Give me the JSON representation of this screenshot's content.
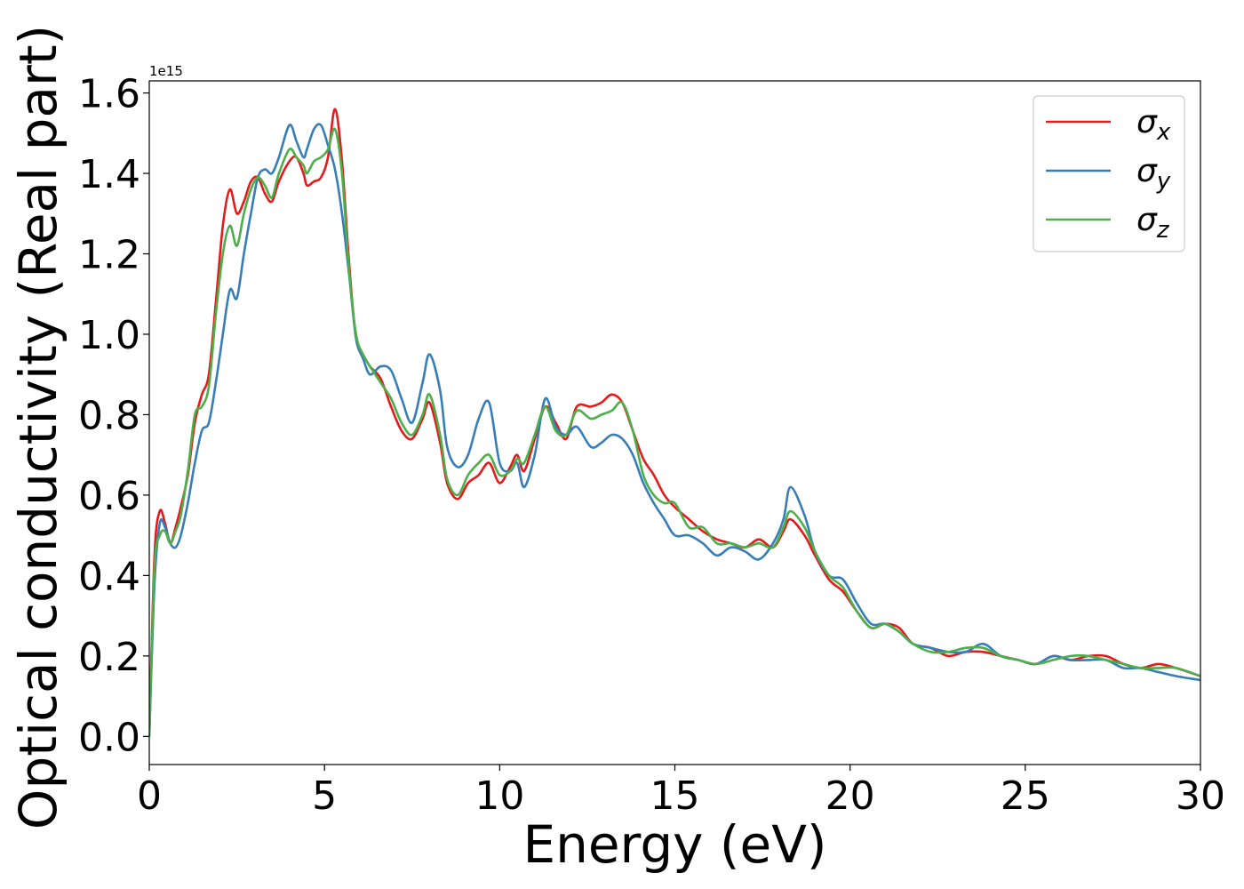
{
  "chart_data": {
    "type": "line",
    "title": "",
    "xlabel": "Energy (eV)",
    "ylabel": "Optical conductivity (Real part)",
    "y_offset_label": "1e15",
    "xlim": [
      0,
      30
    ],
    "ylim": [
      -0.07,
      1.63
    ],
    "x_ticks": [
      0,
      5,
      10,
      15,
      20,
      25,
      30
    ],
    "x_tick_labels": [
      "0",
      "5",
      "10",
      "15",
      "20",
      "25",
      "30"
    ],
    "y_ticks": [
      0.0,
      0.2,
      0.4,
      0.6,
      0.8,
      1.0,
      1.2,
      1.4,
      1.6
    ],
    "y_tick_labels": [
      "0.0",
      "0.2",
      "0.4",
      "0.6",
      "0.8",
      "1.0",
      "1.2",
      "1.4",
      "1.6"
    ],
    "grid": false,
    "legend_position": "top-right",
    "series": [
      {
        "name": "σx",
        "label_base": "σ",
        "label_sub": "x",
        "color": "#e41a1c",
        "points": [
          [
            0,
            0.0
          ],
          [
            0.15,
            0.45
          ],
          [
            0.3,
            0.56
          ],
          [
            0.45,
            0.53
          ],
          [
            0.6,
            0.48
          ],
          [
            0.75,
            0.52
          ],
          [
            0.9,
            0.57
          ],
          [
            1.1,
            0.65
          ],
          [
            1.3,
            0.78
          ],
          [
            1.5,
            0.85
          ],
          [
            1.7,
            0.9
          ],
          [
            1.9,
            1.08
          ],
          [
            2.1,
            1.27
          ],
          [
            2.3,
            1.36
          ],
          [
            2.5,
            1.3
          ],
          [
            2.7,
            1.33
          ],
          [
            2.9,
            1.38
          ],
          [
            3.1,
            1.39
          ],
          [
            3.3,
            1.35
          ],
          [
            3.5,
            1.33
          ],
          [
            3.7,
            1.38
          ],
          [
            4.0,
            1.43
          ],
          [
            4.2,
            1.44
          ],
          [
            4.4,
            1.4
          ],
          [
            4.5,
            1.37
          ],
          [
            4.7,
            1.38
          ],
          [
            4.9,
            1.39
          ],
          [
            5.1,
            1.44
          ],
          [
            5.3,
            1.56
          ],
          [
            5.5,
            1.43
          ],
          [
            5.7,
            1.18
          ],
          [
            5.9,
            0.99
          ],
          [
            6.1,
            0.95
          ],
          [
            6.3,
            0.92
          ],
          [
            6.6,
            0.89
          ],
          [
            6.9,
            0.82
          ],
          [
            7.2,
            0.76
          ],
          [
            7.5,
            0.74
          ],
          [
            7.8,
            0.79
          ],
          [
            8.0,
            0.83
          ],
          [
            8.3,
            0.73
          ],
          [
            8.5,
            0.63
          ],
          [
            8.8,
            0.59
          ],
          [
            9.1,
            0.63
          ],
          [
            9.4,
            0.65
          ],
          [
            9.7,
            0.68
          ],
          [
            10.0,
            0.63
          ],
          [
            10.3,
            0.67
          ],
          [
            10.5,
            0.7
          ],
          [
            10.7,
            0.66
          ],
          [
            11.0,
            0.74
          ],
          [
            11.3,
            0.82
          ],
          [
            11.6,
            0.78
          ],
          [
            11.9,
            0.74
          ],
          [
            12.2,
            0.82
          ],
          [
            12.6,
            0.82
          ],
          [
            12.9,
            0.83
          ],
          [
            13.2,
            0.85
          ],
          [
            13.5,
            0.83
          ],
          [
            13.8,
            0.76
          ],
          [
            14.1,
            0.69
          ],
          [
            14.4,
            0.65
          ],
          [
            14.7,
            0.6
          ],
          [
            15.0,
            0.57
          ],
          [
            15.4,
            0.54
          ],
          [
            15.8,
            0.51
          ],
          [
            16.2,
            0.49
          ],
          [
            16.6,
            0.48
          ],
          [
            17.0,
            0.47
          ],
          [
            17.4,
            0.49
          ],
          [
            17.8,
            0.47
          ],
          [
            18.1,
            0.51
          ],
          [
            18.3,
            0.54
          ],
          [
            18.7,
            0.5
          ],
          [
            19.0,
            0.45
          ],
          [
            19.4,
            0.39
          ],
          [
            19.8,
            0.36
          ],
          [
            20.2,
            0.31
          ],
          [
            20.6,
            0.27
          ],
          [
            21.0,
            0.28
          ],
          [
            21.4,
            0.27
          ],
          [
            21.8,
            0.23
          ],
          [
            22.3,
            0.22
          ],
          [
            22.8,
            0.2
          ],
          [
            23.3,
            0.21
          ],
          [
            23.8,
            0.21
          ],
          [
            24.3,
            0.2
          ],
          [
            24.8,
            0.19
          ],
          [
            25.3,
            0.18
          ],
          [
            25.8,
            0.2
          ],
          [
            26.3,
            0.19
          ],
          [
            26.8,
            0.2
          ],
          [
            27.3,
            0.2
          ],
          [
            27.8,
            0.18
          ],
          [
            28.3,
            0.17
          ],
          [
            28.8,
            0.18
          ],
          [
            29.3,
            0.17
          ],
          [
            30.0,
            0.15
          ]
        ]
      },
      {
        "name": "σy",
        "label_base": "σ",
        "label_sub": "y",
        "color": "#377eb8",
        "points": [
          [
            0,
            0.0
          ],
          [
            0.15,
            0.38
          ],
          [
            0.3,
            0.53
          ],
          [
            0.45,
            0.52
          ],
          [
            0.6,
            0.48
          ],
          [
            0.75,
            0.47
          ],
          [
            0.9,
            0.5
          ],
          [
            1.1,
            0.58
          ],
          [
            1.3,
            0.68
          ],
          [
            1.5,
            0.76
          ],
          [
            1.7,
            0.78
          ],
          [
            1.9,
            0.88
          ],
          [
            2.1,
            1.0
          ],
          [
            2.3,
            1.11
          ],
          [
            2.5,
            1.09
          ],
          [
            2.7,
            1.2
          ],
          [
            2.9,
            1.3
          ],
          [
            3.1,
            1.39
          ],
          [
            3.3,
            1.41
          ],
          [
            3.5,
            1.4
          ],
          [
            3.7,
            1.44
          ],
          [
            4.0,
            1.52
          ],
          [
            4.2,
            1.48
          ],
          [
            4.4,
            1.44
          ],
          [
            4.5,
            1.46
          ],
          [
            4.7,
            1.51
          ],
          [
            4.9,
            1.52
          ],
          [
            5.1,
            1.47
          ],
          [
            5.3,
            1.41
          ],
          [
            5.5,
            1.3
          ],
          [
            5.7,
            1.15
          ],
          [
            5.9,
            0.99
          ],
          [
            6.1,
            0.94
          ],
          [
            6.3,
            0.9
          ],
          [
            6.6,
            0.92
          ],
          [
            6.9,
            0.91
          ],
          [
            7.2,
            0.84
          ],
          [
            7.5,
            0.78
          ],
          [
            7.8,
            0.88
          ],
          [
            8.0,
            0.95
          ],
          [
            8.3,
            0.86
          ],
          [
            8.5,
            0.72
          ],
          [
            8.8,
            0.67
          ],
          [
            9.1,
            0.7
          ],
          [
            9.4,
            0.79
          ],
          [
            9.7,
            0.83
          ],
          [
            10.0,
            0.68
          ],
          [
            10.3,
            0.66
          ],
          [
            10.5,
            0.68
          ],
          [
            10.7,
            0.62
          ],
          [
            11.0,
            0.7
          ],
          [
            11.3,
            0.84
          ],
          [
            11.6,
            0.77
          ],
          [
            11.9,
            0.75
          ],
          [
            12.2,
            0.77
          ],
          [
            12.6,
            0.72
          ],
          [
            12.9,
            0.73
          ],
          [
            13.2,
            0.75
          ],
          [
            13.5,
            0.74
          ],
          [
            13.8,
            0.7
          ],
          [
            14.1,
            0.63
          ],
          [
            14.4,
            0.58
          ],
          [
            14.7,
            0.54
          ],
          [
            15.0,
            0.5
          ],
          [
            15.4,
            0.5
          ],
          [
            15.8,
            0.48
          ],
          [
            16.2,
            0.45
          ],
          [
            16.6,
            0.47
          ],
          [
            17.0,
            0.46
          ],
          [
            17.4,
            0.44
          ],
          [
            17.8,
            0.48
          ],
          [
            18.1,
            0.54
          ],
          [
            18.3,
            0.62
          ],
          [
            18.7,
            0.55
          ],
          [
            19.0,
            0.46
          ],
          [
            19.4,
            0.4
          ],
          [
            19.8,
            0.39
          ],
          [
            20.2,
            0.33
          ],
          [
            20.6,
            0.28
          ],
          [
            21.0,
            0.28
          ],
          [
            21.4,
            0.26
          ],
          [
            21.8,
            0.23
          ],
          [
            22.3,
            0.22
          ],
          [
            22.8,
            0.21
          ],
          [
            23.3,
            0.21
          ],
          [
            23.8,
            0.23
          ],
          [
            24.3,
            0.2
          ],
          [
            24.8,
            0.19
          ],
          [
            25.3,
            0.18
          ],
          [
            25.8,
            0.2
          ],
          [
            26.3,
            0.19
          ],
          [
            26.8,
            0.19
          ],
          [
            27.3,
            0.19
          ],
          [
            27.8,
            0.17
          ],
          [
            28.3,
            0.17
          ],
          [
            28.8,
            0.16
          ],
          [
            29.3,
            0.15
          ],
          [
            30.0,
            0.14
          ]
        ]
      },
      {
        "name": "σz",
        "label_base": "σ",
        "label_sub": "z",
        "color": "#4daf4a",
        "points": [
          [
            0,
            0.0
          ],
          [
            0.15,
            0.42
          ],
          [
            0.3,
            0.5
          ],
          [
            0.45,
            0.51
          ],
          [
            0.6,
            0.48
          ],
          [
            0.75,
            0.51
          ],
          [
            0.9,
            0.55
          ],
          [
            1.1,
            0.66
          ],
          [
            1.3,
            0.8
          ],
          [
            1.5,
            0.82
          ],
          [
            1.7,
            0.87
          ],
          [
            1.9,
            1.05
          ],
          [
            2.1,
            1.2
          ],
          [
            2.3,
            1.27
          ],
          [
            2.5,
            1.22
          ],
          [
            2.7,
            1.3
          ],
          [
            2.9,
            1.36
          ],
          [
            3.1,
            1.39
          ],
          [
            3.3,
            1.37
          ],
          [
            3.5,
            1.34
          ],
          [
            3.7,
            1.4
          ],
          [
            4.0,
            1.46
          ],
          [
            4.2,
            1.44
          ],
          [
            4.4,
            1.42
          ],
          [
            4.5,
            1.4
          ],
          [
            4.7,
            1.43
          ],
          [
            4.9,
            1.44
          ],
          [
            5.1,
            1.46
          ],
          [
            5.3,
            1.51
          ],
          [
            5.5,
            1.4
          ],
          [
            5.7,
            1.16
          ],
          [
            5.9,
            1.0
          ],
          [
            6.1,
            0.95
          ],
          [
            6.3,
            0.92
          ],
          [
            6.6,
            0.88
          ],
          [
            6.9,
            0.84
          ],
          [
            7.2,
            0.78
          ],
          [
            7.5,
            0.75
          ],
          [
            7.8,
            0.8
          ],
          [
            8.0,
            0.85
          ],
          [
            8.3,
            0.75
          ],
          [
            8.5,
            0.64
          ],
          [
            8.8,
            0.6
          ],
          [
            9.1,
            0.65
          ],
          [
            9.4,
            0.68
          ],
          [
            9.7,
            0.7
          ],
          [
            10.0,
            0.65
          ],
          [
            10.3,
            0.66
          ],
          [
            10.5,
            0.69
          ],
          [
            10.7,
            0.68
          ],
          [
            11.0,
            0.75
          ],
          [
            11.3,
            0.82
          ],
          [
            11.6,
            0.76
          ],
          [
            11.9,
            0.75
          ],
          [
            12.2,
            0.81
          ],
          [
            12.6,
            0.79
          ],
          [
            12.9,
            0.8
          ],
          [
            13.2,
            0.81
          ],
          [
            13.5,
            0.83
          ],
          [
            13.8,
            0.76
          ],
          [
            14.1,
            0.65
          ],
          [
            14.4,
            0.6
          ],
          [
            14.7,
            0.58
          ],
          [
            15.0,
            0.58
          ],
          [
            15.4,
            0.52
          ],
          [
            15.8,
            0.52
          ],
          [
            16.2,
            0.48
          ],
          [
            16.6,
            0.48
          ],
          [
            17.0,
            0.47
          ],
          [
            17.4,
            0.48
          ],
          [
            17.8,
            0.47
          ],
          [
            18.1,
            0.52
          ],
          [
            18.3,
            0.56
          ],
          [
            18.7,
            0.52
          ],
          [
            19.0,
            0.46
          ],
          [
            19.4,
            0.4
          ],
          [
            19.8,
            0.37
          ],
          [
            20.2,
            0.31
          ],
          [
            20.6,
            0.27
          ],
          [
            21.0,
            0.28
          ],
          [
            21.4,
            0.26
          ],
          [
            21.8,
            0.23
          ],
          [
            22.3,
            0.21
          ],
          [
            22.8,
            0.21
          ],
          [
            23.3,
            0.22
          ],
          [
            23.8,
            0.22
          ],
          [
            24.3,
            0.2
          ],
          [
            24.8,
            0.19
          ],
          [
            25.3,
            0.18
          ],
          [
            25.8,
            0.19
          ],
          [
            26.3,
            0.2
          ],
          [
            26.8,
            0.2
          ],
          [
            27.3,
            0.19
          ],
          [
            27.8,
            0.18
          ],
          [
            28.3,
            0.17
          ],
          [
            28.8,
            0.17
          ],
          [
            29.3,
            0.17
          ],
          [
            30.0,
            0.15
          ]
        ]
      }
    ]
  }
}
